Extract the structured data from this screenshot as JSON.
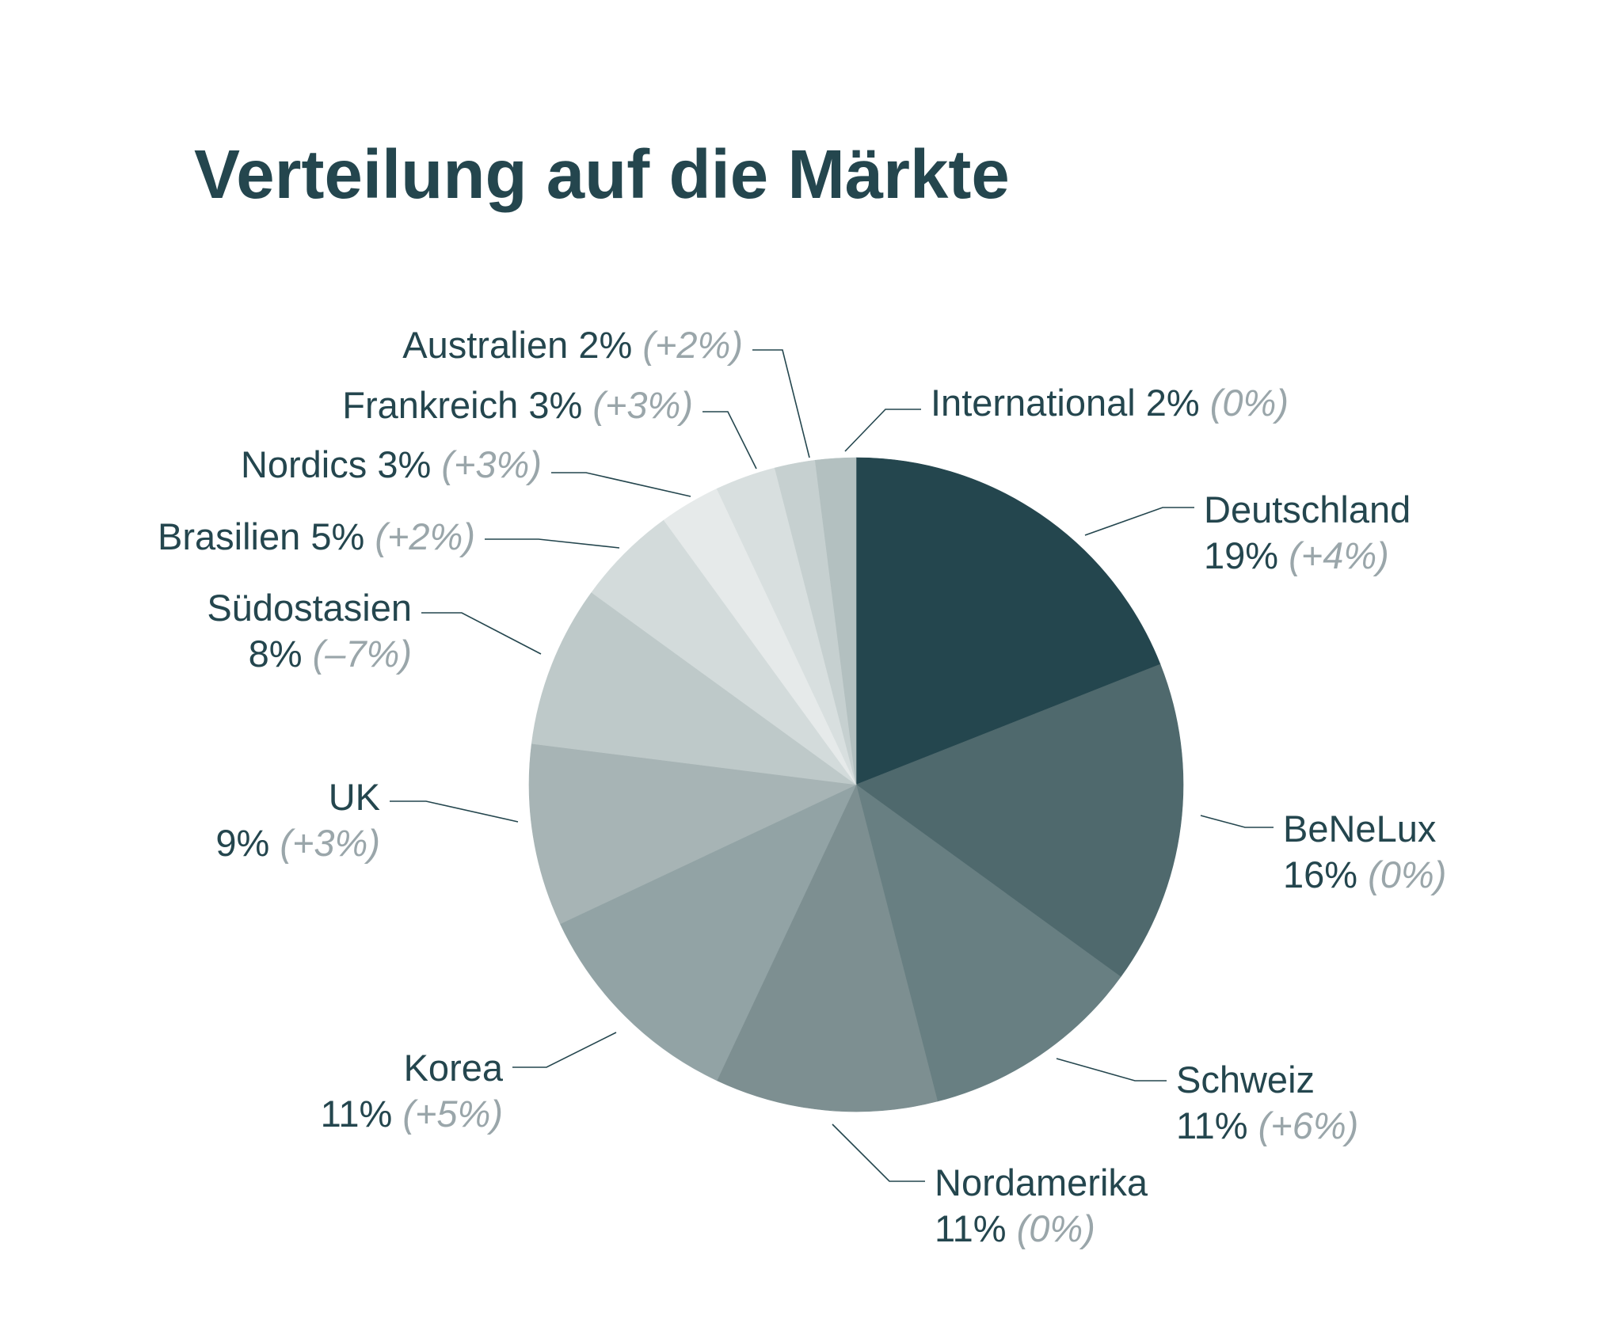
{
  "chart_data": {
    "type": "pie",
    "title": "Verteilung auf die Märkte",
    "start": "12 o'clock",
    "direction": "clockwise",
    "slices": [
      {
        "name": "Deutschland",
        "value": 19,
        "value_label": "19%",
        "change": "(+4%)",
        "color": "#24464e"
      },
      {
        "name": "BeNeLux",
        "value": 16,
        "value_label": "16%",
        "change": "(0%)",
        "color": "#4f696d"
      },
      {
        "name": "Schweiz",
        "value": 11,
        "value_label": "11%",
        "change": "(+6%)",
        "color": "#687f82"
      },
      {
        "name": "Nordamerika",
        "value": 11,
        "value_label": "11%",
        "change": "(0%)",
        "color": "#7d8f91"
      },
      {
        "name": "Korea",
        "value": 11,
        "value_label": "11%",
        "change": "(+5%)",
        "color": "#92a3a5"
      },
      {
        "name": "UK",
        "value": 9,
        "value_label": "9%",
        "change": "(+3%)",
        "color": "#a7b4b5"
      },
      {
        "name": "Südostasien",
        "value": 8,
        "value_label": "8%",
        "change": "(–7%)",
        "color": "#bec9c9"
      },
      {
        "name": "Brasilien",
        "value": 5,
        "value_label": "5%",
        "change": "(+2%)",
        "color": "#d3dbdb"
      },
      {
        "name": "Nordics",
        "value": 3,
        "value_label": "3%",
        "change": "(+3%)",
        "color": "#e6eaea"
      },
      {
        "name": "Frankreich",
        "value": 3,
        "value_label": "3%",
        "change": "(+3%)",
        "color": "#d8dfdf"
      },
      {
        "name": "Australien",
        "value": 2,
        "value_label": "2%",
        "change": "(+2%)",
        "color": "#c6d0d0"
      },
      {
        "name": "International",
        "value": 2,
        "value_label": "2%",
        "change": "(0%)",
        "color": "#b3c0c0"
      }
    ]
  }
}
